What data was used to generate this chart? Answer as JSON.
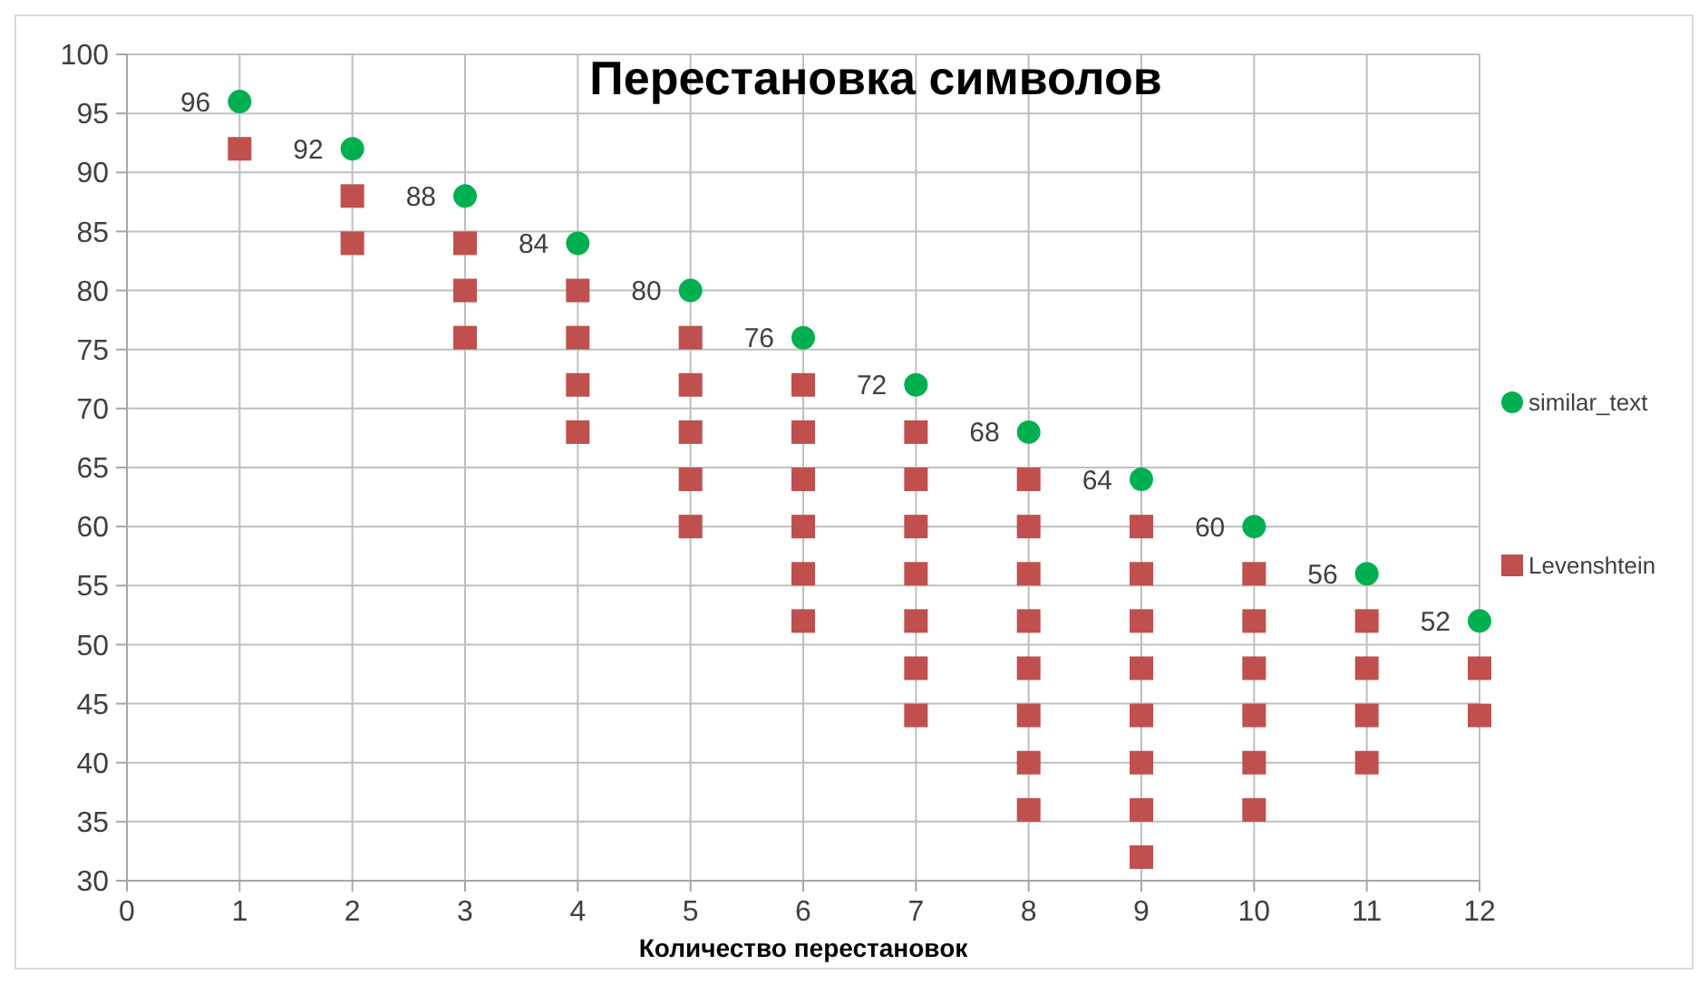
{
  "chart_data": {
    "type": "scatter",
    "title": "Перестановка символов",
    "xlabel": "Количество перестановок",
    "xlim": [
      0,
      12
    ],
    "xticks": [
      0,
      1,
      2,
      3,
      4,
      5,
      6,
      7,
      8,
      9,
      10,
      11,
      12
    ],
    "ylim": [
      30,
      100
    ],
    "yticks": [
      30,
      35,
      40,
      45,
      50,
      55,
      60,
      65,
      70,
      75,
      80,
      85,
      90,
      95,
      100
    ],
    "grid": true,
    "legend": "right",
    "series": [
      {
        "name": "similar_text",
        "color": "#00b050",
        "marker": "circle",
        "x": [
          1,
          2,
          3,
          4,
          5,
          6,
          7,
          8,
          9,
          10,
          11,
          12
        ],
        "values": [
          96,
          92,
          88,
          84,
          80,
          76,
          72,
          68,
          64,
          60,
          56,
          52
        ],
        "value_labels": [
          "96",
          "92",
          "88",
          "84",
          "80",
          "76",
          "72",
          "68",
          "64",
          "60",
          "56",
          "52"
        ]
      },
      {
        "name": "Levenshtein",
        "color": "#c0504d",
        "marker": "square",
        "x": [
          1,
          2,
          2,
          3,
          3,
          3,
          4,
          4,
          4,
          4,
          5,
          5,
          5,
          5,
          5,
          6,
          6,
          6,
          6,
          6,
          6,
          7,
          7,
          7,
          7,
          7,
          7,
          7,
          8,
          8,
          8,
          8,
          8,
          8,
          8,
          8,
          9,
          9,
          9,
          9,
          9,
          9,
          9,
          9,
          10,
          10,
          10,
          10,
          10,
          10,
          11,
          11,
          11,
          11,
          12,
          12
        ],
        "values": [
          92,
          88,
          84,
          84,
          80,
          76,
          80,
          76,
          72,
          68,
          76,
          72,
          68,
          64,
          60,
          72,
          68,
          64,
          60,
          56,
          52,
          68,
          64,
          60,
          56,
          52,
          48,
          44,
          64,
          60,
          56,
          52,
          48,
          44,
          40,
          36,
          60,
          56,
          52,
          48,
          44,
          40,
          36,
          32,
          56,
          52,
          48,
          44,
          40,
          36,
          52,
          48,
          44,
          40,
          48,
          44
        ]
      }
    ]
  }
}
